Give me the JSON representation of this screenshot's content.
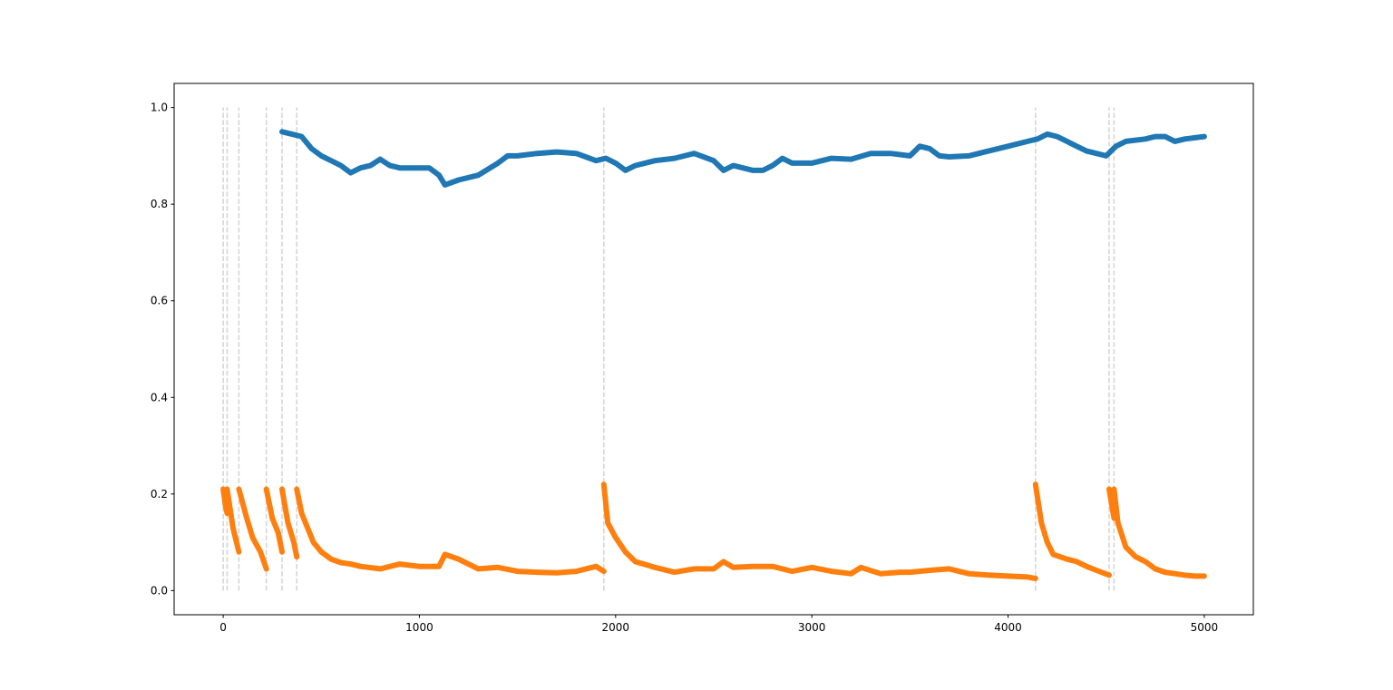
{
  "chart_data": {
    "type": "line",
    "xlim": [
      -250,
      5250
    ],
    "ylim": [
      -0.05,
      1.05
    ],
    "xticks": [
      0,
      1000,
      2000,
      3000,
      4000,
      5000
    ],
    "yticks": [
      {
        "value": 0,
        "label": "0.0"
      },
      0.2,
      0.4,
      0.6,
      0.8,
      {
        "value": 1,
        "label": "1.0"
      }
    ],
    "vlines": [
      0,
      20,
      80,
      220,
      300,
      375,
      1940,
      4140,
      4515,
      4540
    ],
    "vline_color": "#d3d3d3",
    "series": [
      {
        "color": "#1f77b4",
        "x": [
          300,
          350,
          400,
          450,
          500,
          550,
          600,
          650,
          700,
          750,
          800,
          850,
          900,
          1000,
          1050,
          1100,
          1130,
          1200,
          1300,
          1400,
          1450,
          1500,
          1600,
          1700,
          1800,
          1900,
          1950,
          2000,
          2050,
          2100,
          2200,
          2300,
          2400,
          2500,
          2550,
          2600,
          2700,
          2750,
          2800,
          2850,
          2900,
          3000,
          3100,
          3200,
          3300,
          3400,
          3500,
          3550,
          3600,
          3650,
          3700,
          3800,
          3900,
          4000,
          4100,
          4150,
          4200,
          4250,
          4300,
          4350,
          4400,
          4450,
          4500,
          4550,
          4600,
          4700,
          4750,
          4800,
          4850,
          4900,
          5000
        ],
        "values": [
          0.95,
          0.945,
          0.94,
          0.915,
          0.9,
          0.89,
          0.88,
          0.865,
          0.875,
          0.88,
          0.893,
          0.88,
          0.875,
          0.875,
          0.875,
          0.86,
          0.84,
          0.85,
          0.86,
          0.885,
          0.9,
          0.9,
          0.905,
          0.908,
          0.905,
          0.89,
          0.895,
          0.885,
          0.87,
          0.88,
          0.89,
          0.895,
          0.905,
          0.89,
          0.87,
          0.88,
          0.87,
          0.87,
          0.88,
          0.895,
          0.885,
          0.885,
          0.895,
          0.893,
          0.905,
          0.905,
          0.9,
          0.92,
          0.915,
          0.9,
          0.898,
          0.9,
          0.91,
          0.92,
          0.93,
          0.935,
          0.945,
          0.94,
          0.93,
          0.92,
          0.91,
          0.905,
          0.9,
          0.92,
          0.93,
          0.935,
          0.94,
          0.94,
          0.93,
          0.935,
          0.94
        ]
      },
      {
        "color": "#ff7f0e",
        "x": [
          0,
          10,
          20,
          20,
          20,
          50,
          80,
          80,
          80,
          120,
          150,
          190,
          220,
          220,
          220,
          250,
          280,
          300,
          300,
          300,
          330,
          360,
          375,
          375,
          375,
          400,
          430,
          460,
          500,
          550,
          600,
          650,
          700,
          800,
          900,
          1000,
          1100,
          1130,
          1200,
          1250,
          1300,
          1400,
          1500,
          1600,
          1700,
          1800,
          1900,
          1940,
          1940,
          1940,
          1960,
          2000,
          2050,
          2100,
          2200,
          2300,
          2400,
          2500,
          2550,
          2600,
          2700,
          2800,
          2900,
          3000,
          3100,
          3200,
          3250,
          3350,
          3450,
          3500,
          3600,
          3700,
          3800,
          3900,
          4000,
          4100,
          4140,
          4140,
          4140,
          4170,
          4200,
          4230,
          4300,
          4350,
          4400,
          4450,
          4515,
          4515,
          4515,
          4540,
          4540,
          4540,
          4560,
          4600,
          4650,
          4700,
          4750,
          4800,
          4850,
          4900,
          4950,
          5000
        ],
        "values": [
          0.21,
          0.18,
          0.16,
          null,
          0.21,
          0.13,
          0.08,
          null,
          0.21,
          0.15,
          0.11,
          0.08,
          0.045,
          null,
          0.21,
          0.15,
          0.12,
          0.08,
          null,
          0.21,
          0.14,
          0.1,
          0.07,
          null,
          0.21,
          0.16,
          0.13,
          0.1,
          0.08,
          0.065,
          0.058,
          0.055,
          0.05,
          0.045,
          0.055,
          0.05,
          0.05,
          0.075,
          0.065,
          0.055,
          0.045,
          0.048,
          0.04,
          0.038,
          0.037,
          0.04,
          0.05,
          0.04,
          null,
          0.22,
          0.14,
          0.11,
          0.08,
          0.06,
          0.048,
          0.038,
          0.045,
          0.045,
          0.06,
          0.048,
          0.05,
          0.05,
          0.04,
          0.048,
          0.04,
          0.035,
          0.048,
          0.035,
          0.038,
          0.038,
          0.042,
          0.045,
          0.035,
          0.032,
          0.03,
          0.028,
          0.025,
          null,
          0.22,
          0.14,
          0.1,
          0.075,
          0.065,
          0.06,
          0.05,
          0.042,
          0.032,
          null,
          0.21,
          0.15,
          null,
          0.21,
          0.14,
          0.09,
          0.07,
          0.06,
          0.045,
          0.038,
          0.035,
          0.032,
          0.03,
          0.03
        ]
      }
    ]
  }
}
